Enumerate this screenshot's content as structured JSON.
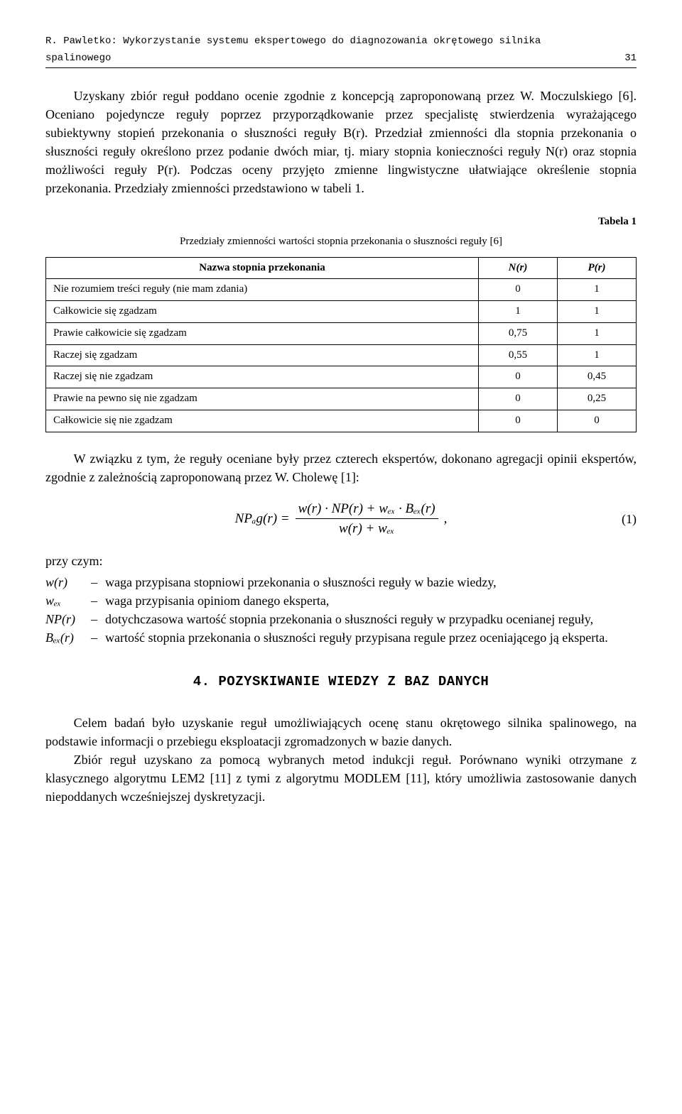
{
  "running_head": {
    "line1": "R. Pawletko: Wykorzystanie systemu ekspertowego do diagnozowania okrętowego silnika",
    "line2_left": "spalinowego",
    "line2_right": "31"
  },
  "p1": "Uzyskany zbiór reguł poddano ocenie zgodnie z koncepcją zaproponowaną przez W. Moczulskiego [6]. Oceniano pojedyncze reguły poprzez przyporządkowanie przez specjalistę stwierdzenia wyrażającego subiektywny stopień przekonania o słuszności reguły B(r). Przedział zmienności dla stopnia przekonania o słuszności reguły określono przez podanie dwóch miar, tj. miary stopnia konieczności reguły N(r) oraz stopnia możliwości reguły P(r). Podczas oceny przyjęto zmienne lingwistyczne ułatwiające określenie stopnia przekonania. Przedziały zmienności przedstawiono w tabeli 1.",
  "table": {
    "label": "Tabela 1",
    "title": "Przedziały zmienności wartości stopnia przekonania o słuszności reguły [6]",
    "columns": [
      "Nazwa stopnia przekonania",
      "N(r)",
      "P(r)"
    ],
    "rows": [
      [
        "Nie rozumiem treści reguły (nie mam zdania)",
        "0",
        "1"
      ],
      [
        "Całkowicie się zgadzam",
        "1",
        "1"
      ],
      [
        "Prawie całkowicie się zgadzam",
        "0,75",
        "1"
      ],
      [
        "Raczej się zgadzam",
        "0,55",
        "1"
      ],
      [
        "Raczej się nie zgadzam",
        "0",
        "0,45"
      ],
      [
        "Prawie na pewno się nie zgadzam",
        "0",
        "0,25"
      ],
      [
        "Całkowicie się nie zgadzam",
        "0",
        "0"
      ]
    ]
  },
  "p2": "W związku z tym, że reguły oceniane były przez czterech ekspertów, dokonano agregacji opinii ekspertów, zgodnie z zależnością zaproponowaną przez W. Cholewę [1]:",
  "equation": {
    "lhs": "NPₐg(r) =",
    "num": "w(r) · NP(r) + wₑₓ · Bₑₓ(r)",
    "den": "w(r) + wₑₓ",
    "trail": ",",
    "number": "(1)"
  },
  "defs": {
    "intro": "przy czym:",
    "items": [
      {
        "sym": "w(r)",
        "text": "waga przypisana stopniowi przekonania o słuszności reguły w bazie wiedzy,"
      },
      {
        "sym": "wₑₓ",
        "text": "waga przypisania opiniom danego eksperta,"
      },
      {
        "sym": "NP(r)",
        "text": "dotychczasowa wartość stopnia przekonania o słuszności reguły w przypadku ocenianej reguły,"
      },
      {
        "sym": "Bₑₓ(r)",
        "text": "wartość stopnia przekonania o słuszności reguły przypisana regule przez oceniającego ją eksperta."
      }
    ]
  },
  "section_heading": "4. POZYSKIWANIE WIEDZY Z BAZ DANYCH",
  "p3": "Celem badań było uzyskanie reguł umożliwiających ocenę stanu okrętowego silnika spalinowego, na podstawie informacji o przebiegu eksploatacji zgromadzonych w bazie danych.",
  "p4": "Zbiór reguł uzyskano za pomocą wybranych metod indukcji reguł. Porównano wyniki otrzymane z klasycznego algorytmu LEM2 [11] z tymi z algorytmu MODLEM [11], który umożliwia zastosowanie danych niepoddanych wcześniejszej dyskretyzacji."
}
